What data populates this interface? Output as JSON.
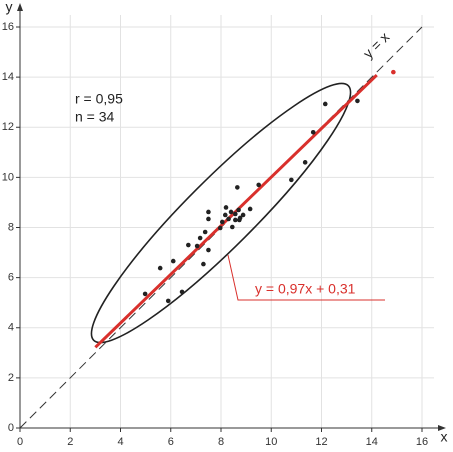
{
  "chart_data": {
    "type": "scatter",
    "x_label": "x",
    "y_label": "y",
    "xlim": [
      0,
      16
    ],
    "ylim": [
      0,
      16
    ],
    "xticks": [
      0,
      2,
      4,
      6,
      8,
      10,
      12,
      14,
      16
    ],
    "yticks": [
      0,
      2,
      4,
      6,
      8,
      10,
      12,
      14,
      16
    ],
    "grid": true,
    "color": "#222222",
    "x": [
      4.98,
      5.9,
      6.1,
      5.58,
      6.45,
      6.7,
      7.05,
      7.17,
      7.3,
      7.37,
      7.5,
      7.5,
      7.5,
      8.05,
      8.17,
      8.3,
      8.4,
      8.45,
      8.57,
      8.57,
      8.7,
      8.73,
      8.65,
      8.76,
      9.16,
      9.5,
      10.8,
      11.35,
      11.67,
      12.15,
      13.43,
      7.97,
      8.2,
      8.88
    ],
    "values": [
      5.35,
      5.07,
      6.66,
      6.38,
      5.43,
      7.3,
      7.26,
      7.58,
      6.54,
      7.82,
      7.1,
      8.34,
      8.62,
      8.22,
      8.5,
      8.34,
      8.62,
      8.02,
      8.54,
      8.3,
      8.7,
      8.3,
      9.6,
      8.38,
      8.74,
      9.7,
      9.9,
      10.6,
      11.8,
      12.93,
      13.05,
      7.98,
      8.8,
      8.5
    ],
    "highlight_point": {
      "x": 14.86,
      "y": 14.2,
      "color": "#d9302c"
    },
    "fit": {
      "slope": 0.97,
      "intercept": 0.31,
      "x_range": [
        3,
        14.2
      ],
      "color": "#d9302c",
      "label": "y = 0,97x + 0,31"
    },
    "identity_label": "y = x",
    "stats": [
      "r = 0,95",
      "n = 34"
    ]
  }
}
